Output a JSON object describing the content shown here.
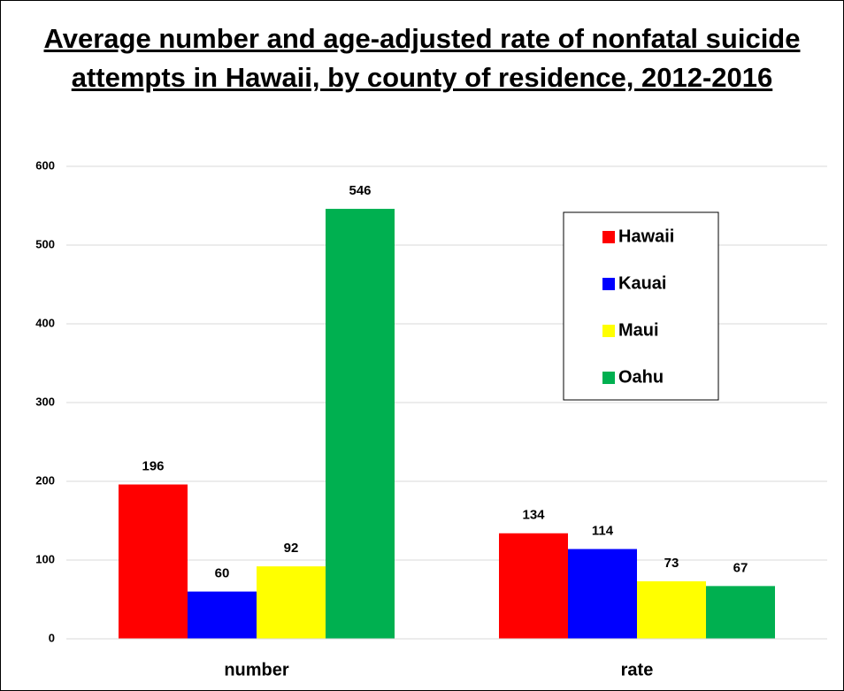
{
  "chart_data": {
    "type": "bar",
    "title": "Average number and age-adjusted rate of nonfatal suicide attempts in Hawaii, by county of residence, 2012-2016",
    "categories": [
      "number",
      "rate"
    ],
    "series": [
      {
        "name": "Hawaii",
        "color": "#ff0000",
        "values": [
          196,
          134
        ]
      },
      {
        "name": "Kauai",
        "color": "#0000ff",
        "values": [
          60,
          114
        ]
      },
      {
        "name": "Maui",
        "color": "#ffff00",
        "values": [
          92,
          73
        ]
      },
      {
        "name": "Oahu",
        "color": "#00b050",
        "values": [
          546,
          67
        ]
      }
    ],
    "ylim": [
      0,
      600
    ],
    "yticks": [
      0,
      100,
      200,
      300,
      400,
      500,
      600
    ],
    "grid": true,
    "legend": "upper right",
    "data_labels": true
  }
}
